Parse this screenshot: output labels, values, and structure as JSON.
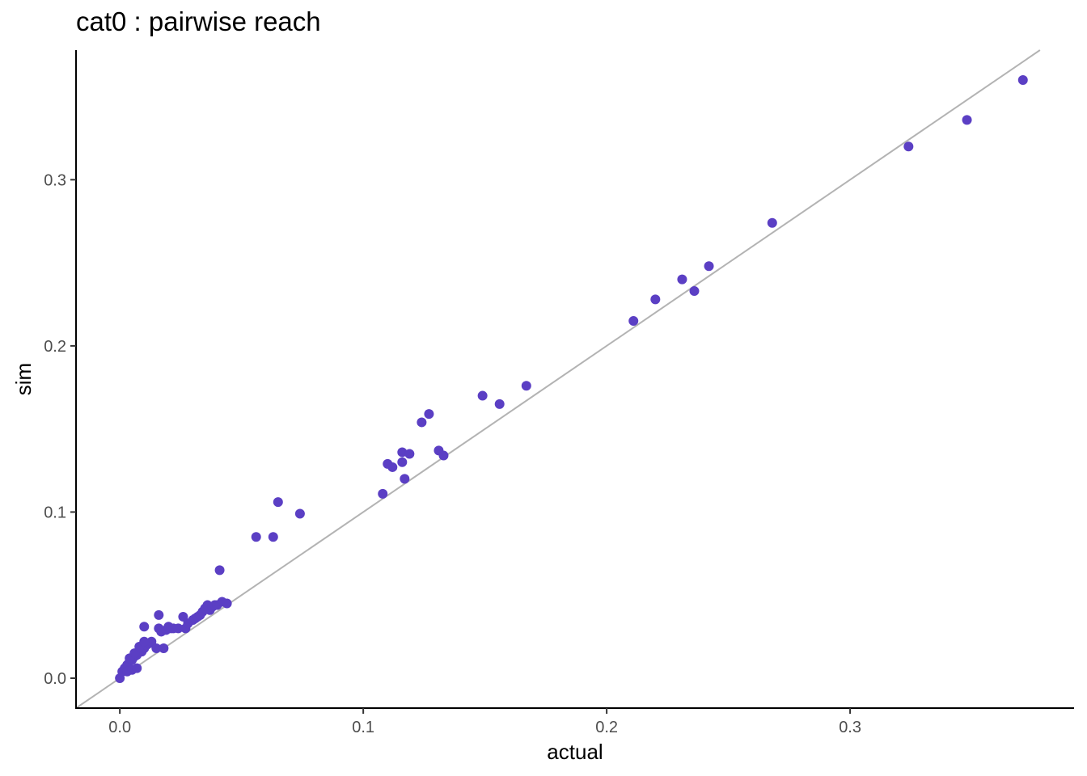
{
  "chart_data": {
    "type": "scatter",
    "title": "cat0 : pairwise reach",
    "xlabel": "actual",
    "ylabel": "sim",
    "xlim": [
      -0.018,
      0.392
    ],
    "ylim": [
      -0.018,
      0.378
    ],
    "xticks": [
      0.0,
      0.1,
      0.2,
      0.3
    ],
    "xtick_labels": [
      "0.0",
      "0.1",
      "0.2",
      "0.3"
    ],
    "yticks": [
      0.0,
      0.1,
      0.2,
      0.3
    ],
    "ytick_labels": [
      "0.0",
      "0.1",
      "0.2",
      "0.3"
    ],
    "grid": false,
    "reference_line": {
      "slope": 1,
      "intercept": 0,
      "color": "#b3b3b3"
    },
    "point_color": "#5b3fc4",
    "series": [
      {
        "x": [
          0.0,
          0.001,
          0.002,
          0.003,
          0.004,
          0.005,
          0.006,
          0.007,
          0.008,
          0.003,
          0.005,
          0.007,
          0.009,
          0.01,
          0.011,
          0.012,
          0.013,
          0.004,
          0.006,
          0.008,
          0.01,
          0.015,
          0.016,
          0.017,
          0.018,
          0.019,
          0.02,
          0.021,
          0.01,
          0.016,
          0.022,
          0.024,
          0.026,
          0.027,
          0.028,
          0.03,
          0.031,
          0.032,
          0.033,
          0.034,
          0.035,
          0.036,
          0.037,
          0.038,
          0.039,
          0.04,
          0.042,
          0.044,
          0.041,
          0.056,
          0.063,
          0.065,
          0.074,
          0.108,
          0.11,
          0.112,
          0.116,
          0.116,
          0.117,
          0.119,
          0.124,
          0.127,
          0.131,
          0.133,
          0.149,
          0.156,
          0.167,
          0.211,
          0.22,
          0.231,
          0.236,
          0.242,
          0.268,
          0.324,
          0.348,
          0.371
        ],
        "y": [
          0.0,
          0.004,
          0.006,
          0.008,
          0.01,
          0.011,
          0.013,
          0.014,
          0.016,
          0.004,
          0.005,
          0.006,
          0.016,
          0.018,
          0.02,
          0.021,
          0.022,
          0.012,
          0.015,
          0.019,
          0.022,
          0.018,
          0.03,
          0.028,
          0.018,
          0.029,
          0.031,
          0.03,
          0.031,
          0.038,
          0.03,
          0.03,
          0.037,
          0.03,
          0.033,
          0.035,
          0.036,
          0.037,
          0.038,
          0.04,
          0.042,
          0.044,
          0.041,
          0.043,
          0.044,
          0.044,
          0.046,
          0.045,
          0.065,
          0.085,
          0.085,
          0.106,
          0.099,
          0.111,
          0.129,
          0.127,
          0.13,
          0.136,
          0.12,
          0.135,
          0.154,
          0.159,
          0.137,
          0.134,
          0.17,
          0.165,
          0.176,
          0.215,
          0.228,
          0.24,
          0.233,
          0.248,
          0.274,
          0.32,
          0.336,
          0.36
        ]
      }
    ]
  }
}
